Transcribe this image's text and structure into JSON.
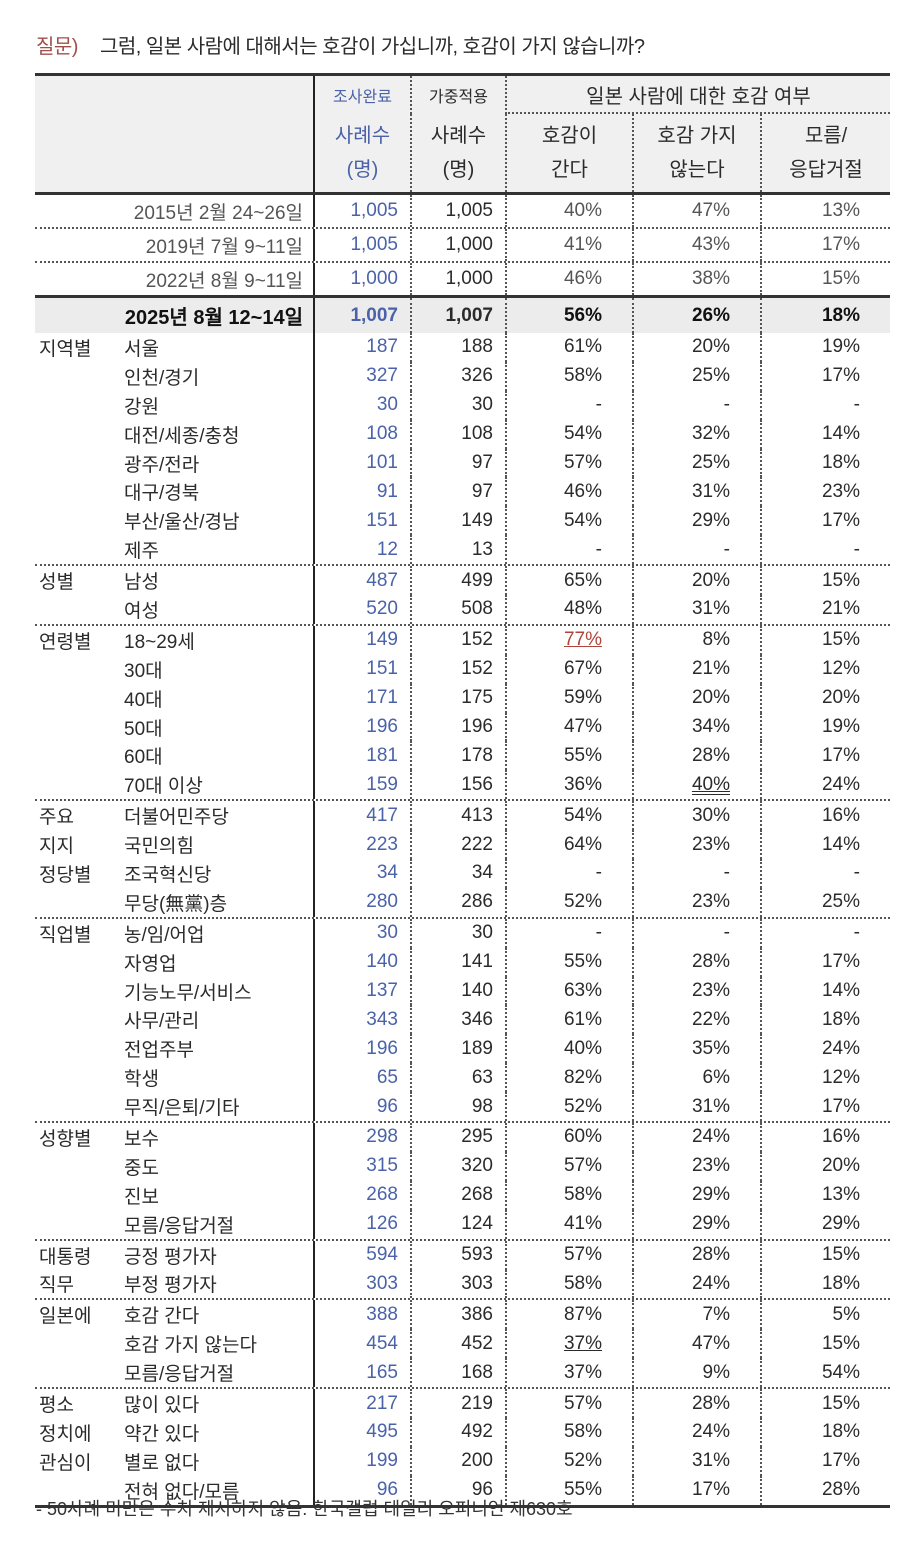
{
  "question": {
    "label": "질문)",
    "text": "그럼, 일본 사람에 대해서는 호감이 가십니까, 호감이 가지 않습니까?"
  },
  "header": {
    "col_n_top": "조사완료",
    "col_n": [
      "사례수",
      "(명)"
    ],
    "col_w_top": "가중적용",
    "col_w": [
      "사례수",
      "(명)"
    ],
    "group_title": "일본 사람에 대한 호감 여부",
    "answers": [
      [
        "호감이",
        "간다"
      ],
      [
        "호감 가지",
        "않는다"
      ],
      [
        "모름/",
        "응답거절"
      ]
    ]
  },
  "colors": {
    "sample_count": "#4a62a8",
    "highlight": "#b0443c",
    "current_row_bg": "#ececec"
  },
  "trend": [
    {
      "label": "2015년 2월 24~26일",
      "n": "1,005",
      "w": "1,005",
      "v": [
        "40%",
        "47%",
        "13%"
      ]
    },
    {
      "label": "2019년 7월 9~11일",
      "n": "1,005",
      "w": "1,000",
      "v": [
        "41%",
        "43%",
        "17%"
      ]
    },
    {
      "label": "2022년 8월 9~11일",
      "n": "1,000",
      "w": "1,000",
      "v": [
        "46%",
        "38%",
        "15%"
      ]
    }
  ],
  "current": {
    "label": "2025년 8월 12~14일",
    "n": "1,007",
    "w": "1,007",
    "v": [
      "56%",
      "26%",
      "18%"
    ]
  },
  "groups": [
    {
      "label_lines": [
        "지역별"
      ],
      "rows": [
        {
          "label": "서울",
          "n": "187",
          "w": "188",
          "v": [
            "61%",
            "20%",
            "19%"
          ]
        },
        {
          "label": "인천/경기",
          "n": "327",
          "w": "326",
          "v": [
            "58%",
            "25%",
            "17%"
          ]
        },
        {
          "label": "강원",
          "n": "30",
          "w": "30",
          "v": [
            "-",
            "-",
            "-"
          ]
        },
        {
          "label": "대전/세종/충청",
          "n": "108",
          "w": "108",
          "v": [
            "54%",
            "32%",
            "14%"
          ]
        },
        {
          "label": "광주/전라",
          "n": "101",
          "w": "97",
          "v": [
            "57%",
            "25%",
            "18%"
          ]
        },
        {
          "label": "대구/경북",
          "n": "91",
          "w": "97",
          "v": [
            "46%",
            "31%",
            "23%"
          ]
        },
        {
          "label": "부산/울산/경남",
          "n": "151",
          "w": "149",
          "v": [
            "54%",
            "29%",
            "17%"
          ]
        },
        {
          "label": "제주",
          "n": "12",
          "w": "13",
          "v": [
            "-",
            "-",
            "-"
          ]
        }
      ]
    },
    {
      "label_lines": [
        "성별"
      ],
      "rows": [
        {
          "label": "남성",
          "n": "487",
          "w": "499",
          "v": [
            "65%",
            "20%",
            "15%"
          ]
        },
        {
          "label": "여성",
          "n": "520",
          "w": "508",
          "v": [
            "48%",
            "31%",
            "21%"
          ]
        }
      ]
    },
    {
      "label_lines": [
        "연령별"
      ],
      "rows": [
        {
          "label": "18~29세",
          "n": "149",
          "w": "152",
          "v": [
            "77%",
            "8%",
            "15%"
          ],
          "emphasis": [
            "red-underline",
            "",
            ""
          ]
        },
        {
          "label": "30대",
          "n": "151",
          "w": "152",
          "v": [
            "67%",
            "21%",
            "12%"
          ]
        },
        {
          "label": "40대",
          "n": "171",
          "w": "175",
          "v": [
            "59%",
            "20%",
            "20%"
          ]
        },
        {
          "label": "50대",
          "n": "196",
          "w": "196",
          "v": [
            "47%",
            "34%",
            "19%"
          ]
        },
        {
          "label": "60대",
          "n": "181",
          "w": "178",
          "v": [
            "55%",
            "28%",
            "17%"
          ]
        },
        {
          "label": "70대 이상",
          "n": "159",
          "w": "156",
          "v": [
            "36%",
            "40%",
            "24%"
          ],
          "emphasis": [
            "",
            "double-underline",
            ""
          ]
        }
      ]
    },
    {
      "label_lines": [
        "주요",
        "지지",
        "정당별"
      ],
      "rows": [
        {
          "label": "더불어민주당",
          "n": "417",
          "w": "413",
          "v": [
            "54%",
            "30%",
            "16%"
          ]
        },
        {
          "label": "국민의힘",
          "n": "223",
          "w": "222",
          "v": [
            "64%",
            "23%",
            "14%"
          ]
        },
        {
          "label": "조국혁신당",
          "n": "34",
          "w": "34",
          "v": [
            "-",
            "-",
            "-"
          ]
        },
        {
          "label": "무당(無黨)층",
          "n": "280",
          "w": "286",
          "v": [
            "52%",
            "23%",
            "25%"
          ]
        }
      ]
    },
    {
      "label_lines": [
        "직업별"
      ],
      "rows": [
        {
          "label": "농/임/어업",
          "n": "30",
          "w": "30",
          "v": [
            "-",
            "-",
            "-"
          ]
        },
        {
          "label": "자영업",
          "n": "140",
          "w": "141",
          "v": [
            "55%",
            "28%",
            "17%"
          ]
        },
        {
          "label": "기능노무/서비스",
          "n": "137",
          "w": "140",
          "v": [
            "63%",
            "23%",
            "14%"
          ]
        },
        {
          "label": "사무/관리",
          "n": "343",
          "w": "346",
          "v": [
            "61%",
            "22%",
            "18%"
          ]
        },
        {
          "label": "전업주부",
          "n": "196",
          "w": "189",
          "v": [
            "40%",
            "35%",
            "24%"
          ]
        },
        {
          "label": "학생",
          "n": "65",
          "w": "63",
          "v": [
            "82%",
            "6%",
            "12%"
          ]
        },
        {
          "label": "무직/은퇴/기타",
          "n": "96",
          "w": "98",
          "v": [
            "52%",
            "31%",
            "17%"
          ]
        }
      ]
    },
    {
      "label_lines": [
        "성향별"
      ],
      "rows": [
        {
          "label": "보수",
          "n": "298",
          "w": "295",
          "v": [
            "60%",
            "24%",
            "16%"
          ]
        },
        {
          "label": "중도",
          "n": "315",
          "w": "320",
          "v": [
            "57%",
            "23%",
            "20%"
          ]
        },
        {
          "label": "진보",
          "n": "268",
          "w": "268",
          "v": [
            "58%",
            "29%",
            "13%"
          ]
        },
        {
          "label": "모름/응답거절",
          "n": "126",
          "w": "124",
          "v": [
            "41%",
            "29%",
            "29%"
          ]
        }
      ]
    },
    {
      "label_lines": [
        "대통령",
        "직무"
      ],
      "rows": [
        {
          "label": "긍정 평가자",
          "n": "594",
          "w": "593",
          "v": [
            "57%",
            "28%",
            "15%"
          ]
        },
        {
          "label": "부정 평가자",
          "n": "303",
          "w": "303",
          "v": [
            "58%",
            "24%",
            "18%"
          ]
        }
      ]
    },
    {
      "label_lines": [
        "일본에"
      ],
      "rows": [
        {
          "label": "호감 간다",
          "n": "388",
          "w": "386",
          "v": [
            "87%",
            "7%",
            "5%"
          ]
        },
        {
          "label": "호감 가지 않는다",
          "n": "454",
          "w": "452",
          "v": [
            "37%",
            "47%",
            "15%"
          ],
          "emphasis": [
            "underline",
            "",
            ""
          ]
        },
        {
          "label": "모름/응답거절",
          "n": "165",
          "w": "168",
          "v": [
            "37%",
            "9%",
            "54%"
          ]
        }
      ]
    },
    {
      "label_lines": [
        "평소",
        "정치에",
        "관심이"
      ],
      "rows": [
        {
          "label": "많이 있다",
          "n": "217",
          "w": "219",
          "v": [
            "57%",
            "28%",
            "15%"
          ]
        },
        {
          "label": "약간 있다",
          "n": "495",
          "w": "492",
          "v": [
            "58%",
            "24%",
            "18%"
          ]
        },
        {
          "label": "별로 없다",
          "n": "199",
          "w": "200",
          "v": [
            "52%",
            "31%",
            "17%"
          ]
        },
        {
          "label": "전혀 없다/모름",
          "n": "96",
          "w": "96",
          "v": [
            "55%",
            "17%",
            "28%"
          ]
        }
      ]
    }
  ],
  "footnote": "- 50사례 미만은 수치 제시하지 않음. 한국갤럽 데일리 오피니언 제630호"
}
